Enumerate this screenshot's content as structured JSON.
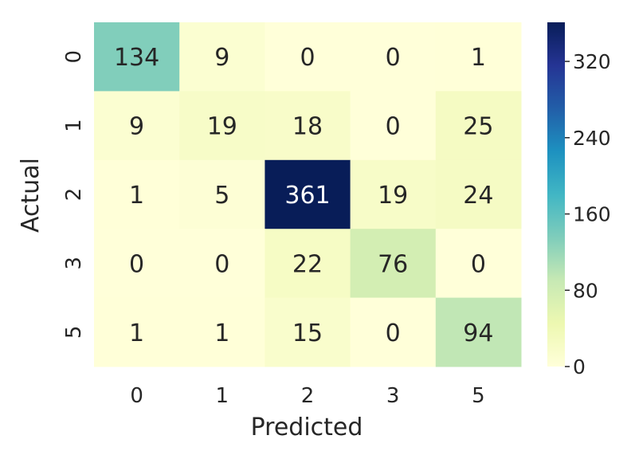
{
  "chart_data": {
    "type": "heatmap",
    "title": "",
    "xlabel": "Predicted",
    "ylabel": "Actual",
    "x_categories": [
      "0",
      "1",
      "2",
      "3",
      "5"
    ],
    "y_categories": [
      "0",
      "1",
      "2",
      "3",
      "5"
    ],
    "matrix": [
      [
        134,
        9,
        0,
        0,
        1
      ],
      [
        9,
        19,
        18,
        0,
        25
      ],
      [
        1,
        5,
        361,
        19,
        24
      ],
      [
        0,
        0,
        22,
        76,
        0
      ],
      [
        1,
        1,
        15,
        0,
        94
      ]
    ],
    "colormap": "YlGnBu",
    "vmin": 0,
    "vmax": 361,
    "colorbar_ticks": [
      "0",
      "80",
      "160",
      "240",
      "320"
    ],
    "colorbar_tick_values": [
      0,
      80,
      160,
      240,
      320
    ],
    "colorbar_position": "right"
  },
  "colors": {
    "text_dark": "#262626",
    "text_light": "#ffffff"
  }
}
